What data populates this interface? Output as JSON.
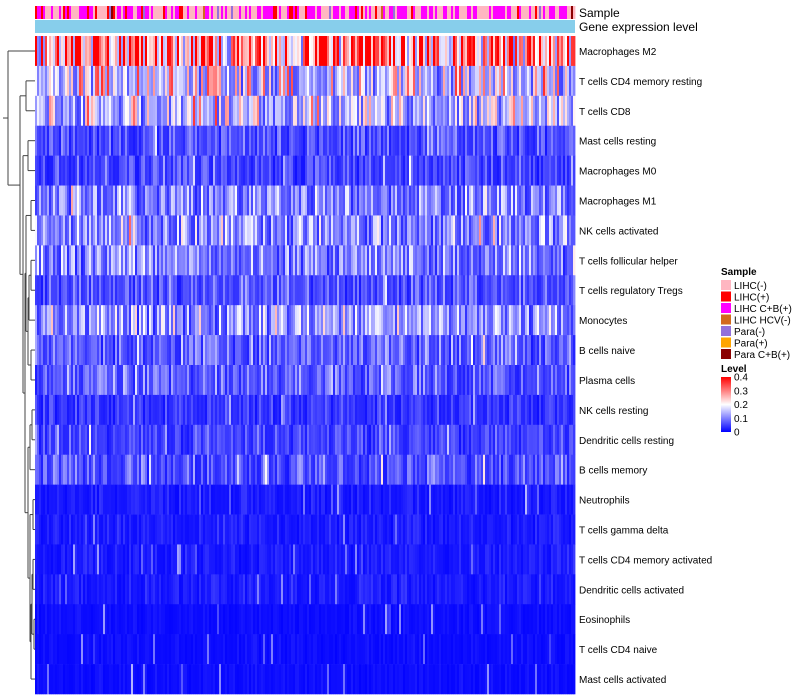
{
  "chart_data": {
    "type": "heatmap",
    "title": "",
    "annotation_tracks": [
      "Sample",
      "Gene expression level"
    ],
    "rows": [
      "Macrophages M2",
      "T cells CD4 memory resting",
      "T cells CD8",
      "Mast cells resting",
      "Macrophages M0",
      "Macrophages M1",
      "NK cells activated",
      "T cells follicular helper",
      "T cells regulatory  Tregs",
      "Monocytes",
      "B cells naive",
      "Plasma cells",
      "NK cells resting",
      "Dendritic cells resting",
      "B cells memory",
      "Neutrophils",
      "T cells gamma delta",
      "T cells CD4 memory activated",
      "Dendritic cells activated",
      "Eosinophils",
      "T cells CD4 naive",
      "Mast cells activated"
    ],
    "row_mean_level": [
      0.3,
      0.16,
      0.15,
      0.06,
      0.05,
      0.09,
      0.1,
      0.09,
      0.06,
      0.11,
      0.07,
      0.07,
      0.04,
      0.05,
      0.06,
      0.02,
      0.02,
      0.02,
      0.02,
      0.01,
      0.01,
      0.01
    ],
    "legend_sample": {
      "title": "Sample",
      "entries": [
        {
          "label": "LIHC(-)",
          "color": "#ffb6c1"
        },
        {
          "label": "LIHC(+)",
          "color": "#ff0000"
        },
        {
          "label": "LIHC C+B(+)",
          "color": "#ff00ff"
        },
        {
          "label": "LIHC HCV(-)",
          "color": "#d2691e"
        },
        {
          "label": "Para(-)",
          "color": "#9370db"
        },
        {
          "label": "Para(+)",
          "color": "#ffa500"
        },
        {
          "label": "Para C+B(+)",
          "color": "#8b0000"
        }
      ]
    },
    "legend_level": {
      "title": "Level",
      "ticks": [
        "0.4",
        "0.3",
        "0.2",
        "0.1",
        "0"
      ],
      "range": [
        0,
        0.4
      ],
      "colors": [
        "#0000ff",
        "#ffffff",
        "#ff0000"
      ]
    },
    "gene_expression_color": "#87ceeb",
    "sample_mix": [
      0.5,
      0.08,
      0.38,
      0.01,
      0.02,
      0.005,
      0.005
    ]
  }
}
